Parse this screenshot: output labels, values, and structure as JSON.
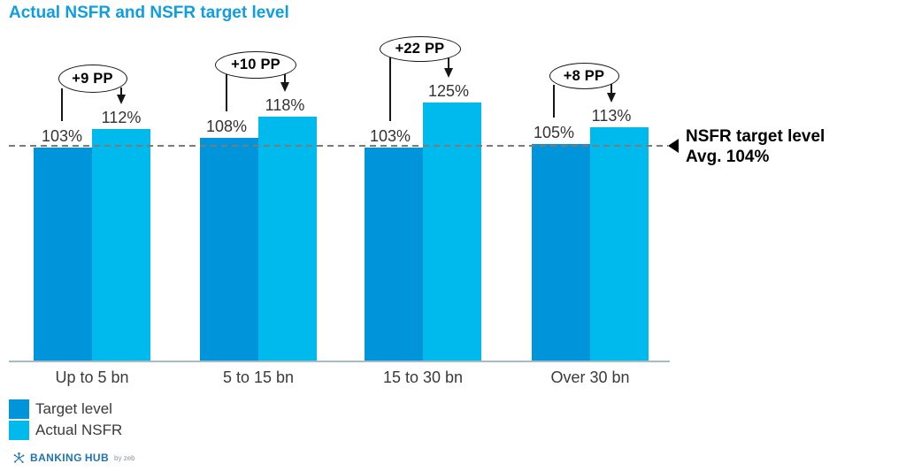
{
  "chart_data": {
    "type": "bar",
    "title": "Actual NSFR and NSFR target level",
    "categories": [
      "Up to 5 bn",
      "5 to 15 bn",
      "15 to 30 bn",
      "Over 30 bn"
    ],
    "series": [
      {
        "name": "Target level",
        "color": "#0095DB",
        "values": [
          103,
          108,
          103,
          105
        ]
      },
      {
        "name": "Actual NSFR",
        "color": "#00B9ED",
        "values": [
          112,
          118,
          125,
          113
        ]
      }
    ],
    "value_suffix": "%",
    "annotations": [
      {
        "label": "+9 PP"
      },
      {
        "label": "+10 PP"
      },
      {
        "label": "+22 PP"
      },
      {
        "label": "+8 PP"
      }
    ],
    "reference_line": {
      "value": 104,
      "style": "dashed",
      "label": "NSFR target level",
      "sublabel": "Avg. 104%"
    },
    "ylim": [
      0,
      175
    ],
    "axis": {
      "x_visible": true,
      "y_visible": false
    },
    "legend_position": "bottom-left"
  },
  "footer": {
    "brand_primary": "BANKING",
    "brand_secondary": "HUB",
    "byline": "by zeb"
  }
}
